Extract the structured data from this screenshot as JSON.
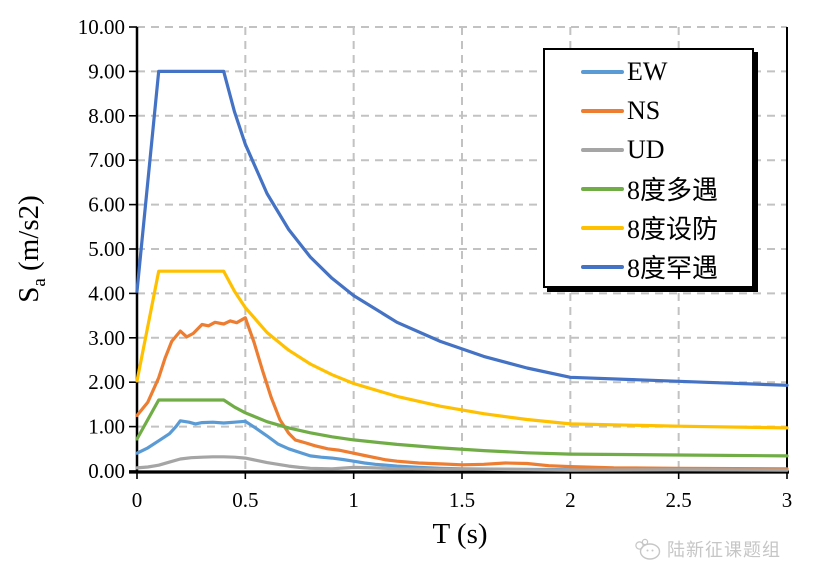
{
  "chart_data": {
    "type": "line",
    "title": "",
    "xlabel": "T (s)",
    "ylabel": "Sa (m/s2)",
    "ylabel_rich": {
      "base": "S",
      "sub": "a",
      "rest": " (m/s2)"
    },
    "xlim": [
      0,
      3
    ],
    "ylim": [
      0,
      10
    ],
    "xticks": [
      {
        "t": 0,
        "label": "0"
      },
      {
        "t": 0.5,
        "label": "0.5"
      },
      {
        "t": 1,
        "label": "1"
      },
      {
        "t": 1.5,
        "label": "1.5"
      },
      {
        "t": 2,
        "label": "2"
      },
      {
        "t": 2.5,
        "label": "2.5"
      },
      {
        "t": 3,
        "label": "3"
      }
    ],
    "yticks": [
      {
        "v": 0,
        "label": "0.00"
      },
      {
        "v": 1,
        "label": "1.00"
      },
      {
        "v": 2,
        "label": "2.00"
      },
      {
        "v": 3,
        "label": "3.00"
      },
      {
        "v": 4,
        "label": "4.00"
      },
      {
        "v": 5,
        "label": "5.00"
      },
      {
        "v": 6,
        "label": "6.00"
      },
      {
        "v": 7,
        "label": "7.00"
      },
      {
        "v": 8,
        "label": "8.00"
      },
      {
        "v": 9,
        "label": "9.00"
      },
      {
        "v": 10,
        "label": "10.00"
      }
    ],
    "grid": {
      "style": "dashed",
      "color": "#C2C2C2"
    },
    "legend_position": "top-right",
    "series": [
      {
        "name": "EW",
        "key": "ew",
        "color": "#5B9BD5",
        "points": [
          [
            0,
            0.4
          ],
          [
            0.05,
            0.52
          ],
          [
            0.1,
            0.68
          ],
          [
            0.15,
            0.84
          ],
          [
            0.18,
            1.0
          ],
          [
            0.2,
            1.13
          ],
          [
            0.24,
            1.1
          ],
          [
            0.27,
            1.06
          ],
          [
            0.3,
            1.09
          ],
          [
            0.35,
            1.1
          ],
          [
            0.4,
            1.08
          ],
          [
            0.45,
            1.1
          ],
          [
            0.5,
            1.12
          ],
          [
            0.55,
            0.96
          ],
          [
            0.6,
            0.79
          ],
          [
            0.65,
            0.61
          ],
          [
            0.7,
            0.5
          ],
          [
            0.75,
            0.42
          ],
          [
            0.8,
            0.34
          ],
          [
            0.85,
            0.31
          ],
          [
            0.9,
            0.29
          ],
          [
            0.95,
            0.26
          ],
          [
            1.0,
            0.22
          ],
          [
            1.05,
            0.18
          ],
          [
            1.1,
            0.15
          ],
          [
            1.2,
            0.11
          ],
          [
            1.3,
            0.08
          ],
          [
            1.4,
            0.06
          ],
          [
            1.5,
            0.05
          ],
          [
            1.7,
            0.04
          ],
          [
            2.0,
            0.03
          ],
          [
            2.5,
            0.03
          ],
          [
            3.0,
            0.03
          ]
        ]
      },
      {
        "name": "NS",
        "key": "ns",
        "color": "#ED7D31",
        "points": [
          [
            0,
            1.25
          ],
          [
            0.05,
            1.55
          ],
          [
            0.1,
            2.1
          ],
          [
            0.13,
            2.55
          ],
          [
            0.16,
            2.92
          ],
          [
            0.2,
            3.15
          ],
          [
            0.23,
            3.02
          ],
          [
            0.26,
            3.1
          ],
          [
            0.3,
            3.3
          ],
          [
            0.33,
            3.27
          ],
          [
            0.36,
            3.35
          ],
          [
            0.4,
            3.31
          ],
          [
            0.43,
            3.38
          ],
          [
            0.46,
            3.34
          ],
          [
            0.5,
            3.45
          ],
          [
            0.54,
            2.9
          ],
          [
            0.58,
            2.25
          ],
          [
            0.62,
            1.65
          ],
          [
            0.66,
            1.15
          ],
          [
            0.7,
            0.85
          ],
          [
            0.73,
            0.7
          ],
          [
            0.78,
            0.63
          ],
          [
            0.82,
            0.57
          ],
          [
            0.88,
            0.5
          ],
          [
            0.93,
            0.47
          ],
          [
            1.0,
            0.4
          ],
          [
            1.05,
            0.35
          ],
          [
            1.1,
            0.3
          ],
          [
            1.15,
            0.25
          ],
          [
            1.2,
            0.22
          ],
          [
            1.3,
            0.18
          ],
          [
            1.4,
            0.16
          ],
          [
            1.5,
            0.14
          ],
          [
            1.6,
            0.15
          ],
          [
            1.7,
            0.18
          ],
          [
            1.8,
            0.17
          ],
          [
            1.9,
            0.12
          ],
          [
            2.0,
            0.1
          ],
          [
            2.2,
            0.07
          ],
          [
            2.5,
            0.06
          ],
          [
            3.0,
            0.05
          ]
        ]
      },
      {
        "name": "UD",
        "key": "ud",
        "color": "#A5A5A5",
        "points": [
          [
            0,
            0.07
          ],
          [
            0.05,
            0.09
          ],
          [
            0.1,
            0.13
          ],
          [
            0.15,
            0.2
          ],
          [
            0.2,
            0.27
          ],
          [
            0.25,
            0.3
          ],
          [
            0.3,
            0.31
          ],
          [
            0.35,
            0.32
          ],
          [
            0.4,
            0.32
          ],
          [
            0.45,
            0.31
          ],
          [
            0.5,
            0.29
          ],
          [
            0.55,
            0.24
          ],
          [
            0.6,
            0.19
          ],
          [
            0.65,
            0.15
          ],
          [
            0.7,
            0.11
          ],
          [
            0.75,
            0.08
          ],
          [
            0.8,
            0.06
          ],
          [
            0.9,
            0.05
          ],
          [
            1.0,
            0.08
          ],
          [
            1.1,
            0.07
          ],
          [
            1.2,
            0.05
          ],
          [
            1.4,
            0.04
          ],
          [
            1.6,
            0.04
          ],
          [
            1.8,
            0.03
          ],
          [
            2.0,
            0.02
          ],
          [
            2.5,
            0.03
          ],
          [
            3.0,
            0.02
          ]
        ]
      },
      {
        "name": "8度多遇",
        "key": "8du-duoyu",
        "color": "#70AD47",
        "points": [
          [
            0,
            0.72
          ],
          [
            0.1,
            1.6
          ],
          [
            0.4,
            1.6
          ],
          [
            0.45,
            1.44
          ],
          [
            0.5,
            1.31
          ],
          [
            0.6,
            1.11
          ],
          [
            0.7,
            0.97
          ],
          [
            0.8,
            0.86
          ],
          [
            0.9,
            0.77
          ],
          [
            1.0,
            0.7
          ],
          [
            1.2,
            0.6
          ],
          [
            1.4,
            0.52
          ],
          [
            1.6,
            0.46
          ],
          [
            1.8,
            0.41
          ],
          [
            2.0,
            0.38
          ],
          [
            2.5,
            0.36
          ],
          [
            3.0,
            0.34
          ]
        ]
      },
      {
        "name": "8度设防",
        "key": "8du-shefang",
        "color": "#FFC000",
        "points": [
          [
            0,
            2.03
          ],
          [
            0.1,
            4.5
          ],
          [
            0.4,
            4.5
          ],
          [
            0.45,
            4.05
          ],
          [
            0.5,
            3.68
          ],
          [
            0.6,
            3.12
          ],
          [
            0.7,
            2.72
          ],
          [
            0.8,
            2.41
          ],
          [
            0.9,
            2.17
          ],
          [
            1.0,
            1.97
          ],
          [
            1.2,
            1.68
          ],
          [
            1.4,
            1.46
          ],
          [
            1.6,
            1.29
          ],
          [
            1.8,
            1.16
          ],
          [
            2.0,
            1.06
          ],
          [
            2.5,
            1.01
          ],
          [
            3.0,
            0.97
          ]
        ]
      },
      {
        "name": "8度罕遇",
        "key": "8du-hanyu",
        "color": "#4472C4",
        "points": [
          [
            0,
            4.05
          ],
          [
            0.1,
            9.0
          ],
          [
            0.4,
            9.0
          ],
          [
            0.45,
            8.09
          ],
          [
            0.5,
            7.36
          ],
          [
            0.6,
            6.25
          ],
          [
            0.7,
            5.44
          ],
          [
            0.8,
            4.82
          ],
          [
            0.9,
            4.34
          ],
          [
            1.0,
            3.95
          ],
          [
            1.2,
            3.35
          ],
          [
            1.4,
            2.92
          ],
          [
            1.6,
            2.58
          ],
          [
            1.8,
            2.32
          ],
          [
            2.0,
            2.11
          ],
          [
            2.5,
            2.02
          ],
          [
            3.0,
            1.93
          ]
        ]
      }
    ]
  },
  "watermark": {
    "text": "陆新征课题组"
  }
}
